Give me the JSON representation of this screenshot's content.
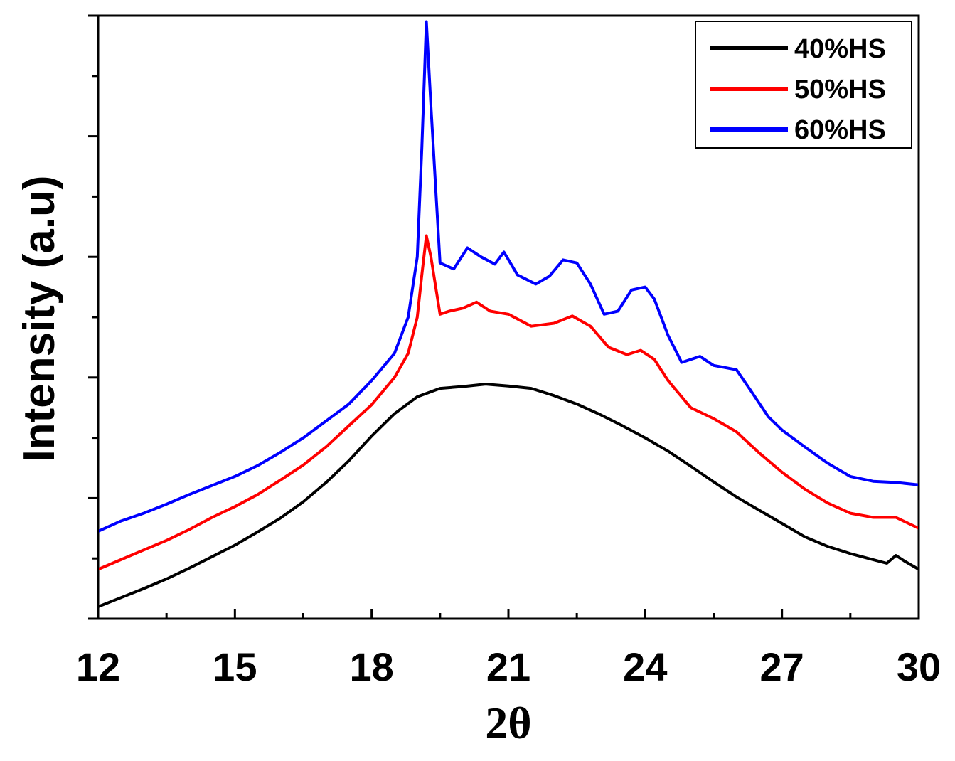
{
  "chart_data": {
    "type": "line",
    "title": "",
    "xlabel": "2θ",
    "ylabel": "Intensity (a.u)",
    "xlim": [
      12,
      30
    ],
    "ylim": [
      0,
      100
    ],
    "x_ticks": [
      12,
      15,
      18,
      21,
      24,
      27,
      30
    ],
    "x_tick_labels": [
      "12",
      "15",
      "18",
      "21",
      "24",
      "27",
      "30"
    ],
    "y_tick_labels_shown": false,
    "grid": false,
    "legend_position": "top-right",
    "series": [
      {
        "name": "40%HS",
        "color": "#000000",
        "points": [
          [
            12.0,
            2.0
          ],
          [
            12.5,
            3.5
          ],
          [
            13.0,
            5.0
          ],
          [
            13.5,
            6.6
          ],
          [
            14.0,
            8.4
          ],
          [
            14.5,
            10.3
          ],
          [
            15.0,
            12.2
          ],
          [
            15.5,
            14.4
          ],
          [
            16.0,
            16.7
          ],
          [
            16.5,
            19.4
          ],
          [
            17.0,
            22.6
          ],
          [
            17.5,
            26.2
          ],
          [
            18.0,
            30.3
          ],
          [
            18.5,
            34.0
          ],
          [
            19.0,
            36.8
          ],
          [
            19.5,
            38.2
          ],
          [
            20.0,
            38.5
          ],
          [
            20.5,
            38.9
          ],
          [
            21.0,
            38.6
          ],
          [
            21.5,
            38.2
          ],
          [
            22.0,
            37.0
          ],
          [
            22.5,
            35.6
          ],
          [
            23.0,
            33.9
          ],
          [
            23.5,
            32.0
          ],
          [
            24.0,
            30.0
          ],
          [
            24.5,
            27.8
          ],
          [
            25.0,
            25.3
          ],
          [
            25.5,
            22.7
          ],
          [
            26.0,
            20.2
          ],
          [
            26.5,
            18.0
          ],
          [
            27.0,
            15.8
          ],
          [
            27.5,
            13.6
          ],
          [
            28.0,
            12.0
          ],
          [
            28.5,
            10.8
          ],
          [
            29.0,
            9.8
          ],
          [
            29.3,
            9.2
          ],
          [
            29.5,
            10.5
          ],
          [
            29.7,
            9.5
          ],
          [
            30.0,
            8.2
          ]
        ]
      },
      {
        "name": "50%HS",
        "color": "#ff0000",
        "points": [
          [
            12.0,
            8.2
          ],
          [
            12.5,
            9.8
          ],
          [
            13.0,
            11.4
          ],
          [
            13.5,
            13.0
          ],
          [
            14.0,
            14.8
          ],
          [
            14.5,
            16.8
          ],
          [
            15.0,
            18.6
          ],
          [
            15.5,
            20.6
          ],
          [
            16.0,
            23.0
          ],
          [
            16.5,
            25.5
          ],
          [
            17.0,
            28.5
          ],
          [
            17.5,
            32.0
          ],
          [
            18.0,
            35.5
          ],
          [
            18.5,
            40.0
          ],
          [
            18.8,
            44.0
          ],
          [
            19.0,
            50.0
          ],
          [
            19.1,
            57.0
          ],
          [
            19.2,
            63.5
          ],
          [
            19.3,
            60.0
          ],
          [
            19.5,
            50.5
          ],
          [
            19.7,
            51.0
          ],
          [
            20.0,
            51.5
          ],
          [
            20.3,
            52.5
          ],
          [
            20.6,
            51.0
          ],
          [
            21.0,
            50.5
          ],
          [
            21.5,
            48.5
          ],
          [
            22.0,
            49.0
          ],
          [
            22.4,
            50.2
          ],
          [
            22.8,
            48.5
          ],
          [
            23.2,
            45.0
          ],
          [
            23.6,
            43.8
          ],
          [
            23.9,
            44.5
          ],
          [
            24.2,
            43.0
          ],
          [
            24.5,
            39.5
          ],
          [
            25.0,
            35.0
          ],
          [
            25.5,
            33.2
          ],
          [
            26.0,
            31.0
          ],
          [
            26.5,
            27.5
          ],
          [
            27.0,
            24.3
          ],
          [
            27.5,
            21.5
          ],
          [
            28.0,
            19.2
          ],
          [
            28.5,
            17.5
          ],
          [
            29.0,
            16.8
          ],
          [
            29.5,
            16.8
          ],
          [
            30.0,
            15.0
          ]
        ]
      },
      {
        "name": "60%HS",
        "color": "#0000ff",
        "points": [
          [
            12.0,
            14.5
          ],
          [
            12.5,
            16.2
          ],
          [
            13.0,
            17.5
          ],
          [
            13.5,
            19.0
          ],
          [
            14.0,
            20.6
          ],
          [
            14.5,
            22.1
          ],
          [
            15.0,
            23.6
          ],
          [
            15.5,
            25.4
          ],
          [
            16.0,
            27.6
          ],
          [
            16.5,
            30.0
          ],
          [
            17.0,
            32.8
          ],
          [
            17.5,
            35.6
          ],
          [
            18.0,
            39.5
          ],
          [
            18.5,
            44.0
          ],
          [
            18.8,
            50.0
          ],
          [
            19.0,
            60.0
          ],
          [
            19.1,
            78.0
          ],
          [
            19.2,
            99.0
          ],
          [
            19.3,
            85.0
          ],
          [
            19.5,
            59.0
          ],
          [
            19.8,
            58.0
          ],
          [
            20.1,
            61.5
          ],
          [
            20.4,
            60.0
          ],
          [
            20.7,
            58.8
          ],
          [
            20.9,
            60.8
          ],
          [
            21.2,
            57.0
          ],
          [
            21.6,
            55.5
          ],
          [
            21.9,
            56.8
          ],
          [
            22.2,
            59.5
          ],
          [
            22.5,
            59.0
          ],
          [
            22.8,
            55.5
          ],
          [
            23.1,
            50.5
          ],
          [
            23.4,
            51.0
          ],
          [
            23.7,
            54.5
          ],
          [
            24.0,
            55.0
          ],
          [
            24.2,
            53.0
          ],
          [
            24.5,
            47.0
          ],
          [
            24.8,
            42.5
          ],
          [
            25.2,
            43.5
          ],
          [
            25.5,
            42.0
          ],
          [
            26.0,
            41.3
          ],
          [
            26.3,
            38.0
          ],
          [
            26.7,
            33.5
          ],
          [
            27.0,
            31.3
          ],
          [
            27.5,
            28.5
          ],
          [
            28.0,
            25.8
          ],
          [
            28.5,
            23.6
          ],
          [
            29.0,
            22.8
          ],
          [
            29.5,
            22.6
          ],
          [
            30.0,
            22.2
          ]
        ]
      }
    ]
  }
}
